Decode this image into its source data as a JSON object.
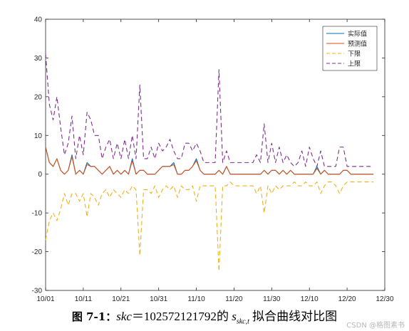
{
  "chart_data": {
    "type": "line",
    "ylim": [
      -30,
      40
    ],
    "yticks": [
      -30,
      -20,
      -10,
      0,
      10,
      20,
      30,
      40
    ],
    "xlim": [
      0,
      90
    ],
    "xticks": [
      0,
      10,
      20,
      30,
      40,
      50,
      60,
      70,
      80,
      90
    ],
    "xtick_labels": [
      "10/01",
      "10/11",
      "10/21",
      "10/31",
      "11/10",
      "11/20",
      "11/30",
      "12/10",
      "12/20",
      "12/30"
    ],
    "legend_position": "top-right",
    "grid": false,
    "series": [
      {
        "name": "实际值",
        "color": "#0072BD",
        "style": "solid",
        "values": [
          7,
          3,
          2,
          4,
          1,
          0,
          1,
          5,
          0,
          1,
          0,
          3,
          2,
          2,
          1,
          0,
          1,
          2,
          0,
          1,
          0,
          1,
          0,
          4,
          0,
          1,
          1,
          0,
          0,
          0,
          1,
          2,
          2,
          2,
          3,
          0,
          0,
          1,
          1,
          2,
          4,
          1,
          0,
          0,
          0,
          0,
          1,
          0,
          2,
          0,
          0,
          0,
          0,
          0,
          0,
          0,
          0,
          0,
          1,
          0,
          1,
          1,
          0,
          1,
          0,
          1,
          0,
          0,
          0,
          0,
          0,
          0,
          2,
          0,
          1,
          0,
          0,
          0,
          0,
          1,
          1,
          0,
          0,
          0,
          0,
          0,
          0,
          0
        ]
      },
      {
        "name": "预测值",
        "color": "#D95319",
        "style": "solid",
        "values": [
          7,
          3,
          2,
          4,
          1,
          0,
          1,
          4.5,
          0,
          1,
          0,
          2.5,
          2,
          2,
          1,
          0,
          1,
          2,
          0,
          1,
          0,
          1,
          0,
          3.5,
          0,
          1,
          1,
          0,
          0,
          0,
          1,
          2,
          2,
          2,
          2.5,
          0,
          0,
          1,
          1,
          2,
          3.5,
          1,
          0,
          0,
          0,
          0,
          1,
          0,
          2,
          0,
          0,
          0,
          0,
          0,
          0,
          0,
          0,
          0,
          1,
          0,
          1,
          1,
          0,
          1,
          0,
          1,
          0,
          0,
          0,
          0,
          0,
          0,
          1.5,
          0,
          1,
          0,
          0,
          0,
          0,
          1,
          1,
          0,
          0,
          0,
          0,
          0,
          0,
          0
        ]
      },
      {
        "name": "下限",
        "color": "#EDB120",
        "style": "dashed",
        "values": [
          -17,
          -12,
          -10,
          -12,
          -9,
          -5,
          -8,
          -5,
          -5,
          -7,
          -5,
          -11,
          -5,
          -6,
          -8,
          -5,
          -4,
          -6,
          -4,
          -5,
          -6,
          -4,
          -5,
          -3,
          -4,
          -21,
          -4,
          -4,
          -5,
          -3,
          -6,
          -4,
          -3,
          -4,
          -3,
          -6,
          -3,
          -4,
          -4,
          -3,
          -7,
          -3,
          -3,
          -3,
          -3,
          -3,
          -25,
          -3,
          -3,
          -2,
          -3,
          -3,
          -3,
          -3,
          -3,
          -3,
          -5,
          -3,
          -10,
          -3,
          -5,
          -3,
          -4,
          -3,
          -3,
          -3,
          -2,
          -3,
          -3,
          -2,
          -3,
          -3,
          -2,
          -5,
          -3,
          -2,
          -2,
          -3,
          -5,
          -3,
          -2,
          -2,
          -2,
          -2,
          -2,
          -2,
          -2,
          -2
        ]
      },
      {
        "name": "上限",
        "color": "#7E2F8E",
        "style": "dashed",
        "values": [
          31,
          18,
          14,
          20,
          12,
          5,
          8,
          15,
          4,
          10,
          5,
          16,
          14,
          10,
          10,
          4,
          7,
          9,
          4,
          8,
          4,
          9,
          4,
          10,
          4,
          23,
          4,
          4,
          7,
          4,
          8,
          6,
          7,
          9,
          6,
          4,
          4,
          8,
          8,
          6,
          8,
          6,
          3,
          3,
          3,
          3,
          27,
          3,
          6,
          3,
          3,
          3,
          3,
          3,
          3,
          3,
          5,
          3,
          13,
          3,
          8,
          3,
          7,
          3,
          5,
          3,
          2,
          3,
          6,
          2,
          7,
          4,
          2,
          6,
          2,
          2,
          2,
          2,
          7,
          7,
          2,
          2,
          2,
          2,
          2,
          2,
          2,
          2
        ]
      }
    ]
  },
  "caption": {
    "prefix": "图 7-1：",
    "formula_var": "skc",
    "formula_value": "＝102572121792",
    "connector": "的",
    "symbol": "s",
    "symbol_sub": "skc,t",
    "suffix": "拟合曲线对比图"
  },
  "watermark": "CSDN @格图素书"
}
